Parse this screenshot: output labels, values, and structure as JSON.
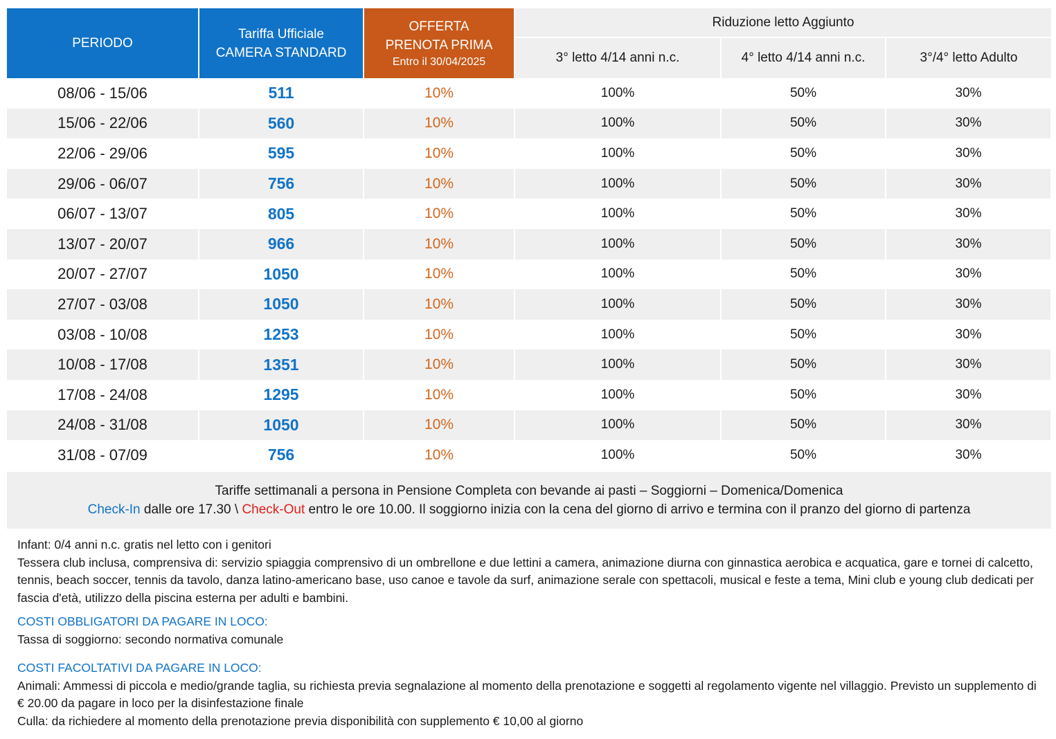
{
  "table": {
    "headers": {
      "periodo": "PERIODO",
      "tariffa_line1": "Tariffa Ufficiale",
      "tariffa_line2": "CAMERA STANDARD",
      "offerta_line1": "OFFERTA",
      "offerta_line2": "PRENOTA PRIMA",
      "offerta_line3": "Entro il 30/04/2025",
      "riduzione": "Riduzione letto Aggiunto",
      "sub1": "3° letto 4/14 anni n.c.",
      "sub2": "4° letto 4/14 anni n.c.",
      "sub3": "3°/4° letto Adulto"
    },
    "rows": [
      {
        "period": "08/06 - 15/06",
        "price": "511",
        "offer": "10%",
        "r3": "100%",
        "r4": "50%",
        "ra": "30%"
      },
      {
        "period": "15/06 - 22/06",
        "price": "560",
        "offer": "10%",
        "r3": "100%",
        "r4": "50%",
        "ra": "30%"
      },
      {
        "period": "22/06 - 29/06",
        "price": "595",
        "offer": "10%",
        "r3": "100%",
        "r4": "50%",
        "ra": "30%"
      },
      {
        "period": "29/06 - 06/07",
        "price": "756",
        "offer": "10%",
        "r3": "100%",
        "r4": "50%",
        "ra": "30%"
      },
      {
        "period": "06/07 - 13/07",
        "price": "805",
        "offer": "10%",
        "r3": "100%",
        "r4": "50%",
        "ra": "30%"
      },
      {
        "period": "13/07 - 20/07",
        "price": "966",
        "offer": "10%",
        "r3": "100%",
        "r4": "50%",
        "ra": "30%"
      },
      {
        "period": "20/07 - 27/07",
        "price": "1050",
        "offer": "10%",
        "r3": "100%",
        "r4": "50%",
        "ra": "30%"
      },
      {
        "period": "27/07 - 03/08",
        "price": "1050",
        "offer": "10%",
        "r3": "100%",
        "r4": "50%",
        "ra": "30%"
      },
      {
        "period": "03/08 - 10/08",
        "price": "1253",
        "offer": "10%",
        "r3": "100%",
        "r4": "50%",
        "ra": "30%"
      },
      {
        "period": "10/08 - 17/08",
        "price": "1351",
        "offer": "10%",
        "r3": "100%",
        "r4": "50%",
        "ra": "30%"
      },
      {
        "period": "17/08 - 24/08",
        "price": "1295",
        "offer": "10%",
        "r3": "100%",
        "r4": "50%",
        "ra": "30%"
      },
      {
        "period": "24/08 - 31/08",
        "price": "1050",
        "offer": "10%",
        "r3": "100%",
        "r4": "50%",
        "ra": "30%"
      },
      {
        "period": "31/08 - 07/09",
        "price": "756",
        "offer": "10%",
        "r3": "100%",
        "r4": "50%",
        "ra": "30%"
      }
    ]
  },
  "note": {
    "line1_a": "Tariffe settimanali a persona in Pensione Completa con bevande ai pasti",
    "line1_sep": " – ",
    "line1_b": "Soggiorni",
    "line1_c": " – Domenica/Domenica",
    "checkin": "Check-In",
    "checkin_text": " dalle ore 17.30 \\ ",
    "checkout": "Check-Out",
    "checkout_text": " entro le ore 10.00. Il soggiorno inizia con la cena del giorno di arrivo e termina con il pranzo del giorno di partenza"
  },
  "info": {
    "infant_label": "Infant:",
    "infant_text": " 0/4 anni n.c. gratis nel letto con i genitori",
    "tessera_label": "Tessera club",
    "tessera_text": " inclusa, comprensiva di: servizio spiaggia comprensivo di un ombrellone e due lettini a camera, animazione diurna con ginnastica aerobica e acquatica, gare e tornei di calcetto, tennis, beach soccer, tennis da tavolo, danza latino-americano base, uso canoe e tavole da surf, animazione serale con spettacoli, musical e feste a tema, Mini club e young club dedicati per fascia d'età, utilizzo della piscina esterna per adulti e bambini.",
    "obbligatori_heading": "COSTI OBBLIGATORI DA PAGARE IN LOCO:",
    "tassa_label": "Tassa di soggiorno",
    "tassa_text": ": secondo normativa comunale",
    "facoltativi_heading": "COSTI FACOLTATIVI DA PAGARE IN LOCO:",
    "animali_label": "Animali:",
    "animali_text": " Ammessi di piccola e medio/grande taglia, su richiesta previa segnalazione al momento della prenotazione e soggetti al regolamento vigente nel villaggio. Previsto un supplemento di € 20.00 da pagare in loco per la disinfestazione finale",
    "culla_label": "Culla:",
    "culla_text": " da richiedere al momento della prenotazione previa disponibilità con supplemento € 10,00 al giorno"
  },
  "colors": {
    "header_blue": "#1173c7",
    "header_orange": "#c8591a",
    "offer_text": "#d0681f",
    "checkout_red": "#e01e1e",
    "row_alt": "#efefef"
  }
}
